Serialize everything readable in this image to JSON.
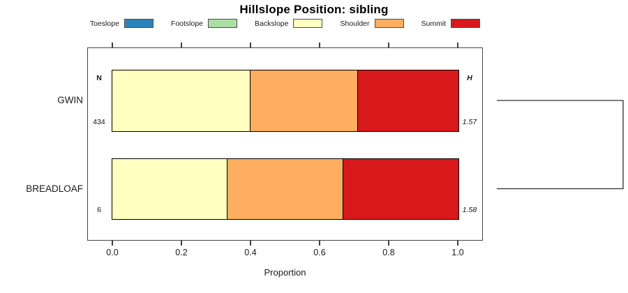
{
  "figure": {
    "title": "Hillslope Position: sibling"
  },
  "chart_data": {
    "type": "bar",
    "variant": "horizontal-stacked-proportion",
    "title": "Hillslope Position: sibling",
    "xlabel": "Proportion",
    "ylabel": "",
    "xlim": [
      0,
      1
    ],
    "xticks": [
      0,
      0.2,
      0.4,
      0.6,
      0.8,
      1
    ],
    "xtick_labels": [
      "0.0",
      "0.2",
      "0.4",
      "0.6",
      "0.8",
      "1.0"
    ],
    "grid": false,
    "legend_position": "top",
    "legend": [
      {
        "label": "Toeslope",
        "color": "#2B83BA"
      },
      {
        "label": "Footslope",
        "color": "#ABDDA4"
      },
      {
        "label": "Backslope",
        "color": "#FFFFBF"
      },
      {
        "label": "Shoulder",
        "color": "#FDAE61"
      },
      {
        "label": "Summit",
        "color": "#D7191C"
      }
    ],
    "categories": [
      "GWIN",
      "BREADLOAF"
    ],
    "series": [
      {
        "name": "Toeslope",
        "color": "#2B83BA",
        "values": [
          0,
          0
        ]
      },
      {
        "name": "Footslope",
        "color": "#ABDDA4",
        "values": [
          0,
          0
        ]
      },
      {
        "name": "Backslope",
        "color": "#FFFFBF",
        "values": [
          0.4,
          0.333
        ]
      },
      {
        "name": "Shoulder",
        "color": "#FDAE61",
        "values": [
          0.31,
          0.334
        ]
      },
      {
        "name": "Summit",
        "color": "#D7191C",
        "values": [
          0.29,
          0.333
        ]
      }
    ],
    "row_annotations": {
      "left_header": "N",
      "right_header": "H",
      "left_values": [
        "434",
        "6"
      ],
      "right_values": [
        "1.57",
        "1.58"
      ]
    },
    "dendrogram": {
      "position": "right",
      "joins": [
        [
          "GWIN",
          "BREADLOAF"
        ]
      ]
    }
  }
}
